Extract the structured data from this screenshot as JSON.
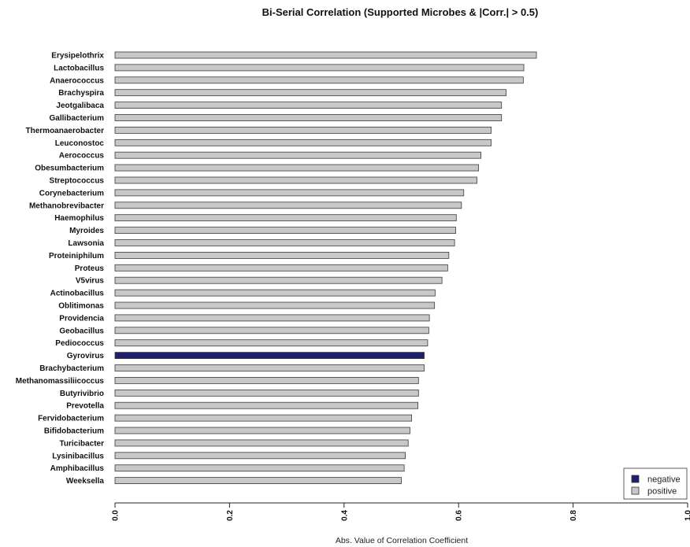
{
  "chart_data": {
    "type": "bar",
    "orientation": "horizontal",
    "title": "Bi-Serial Correlation (Supported Microbes & |Corr.| > 0.5)",
    "xlabel": "Abs. Value of Correlation Coefficient",
    "ylabel": "",
    "xlim": [
      0.0,
      1.0
    ],
    "x_ticks": [
      "0.0",
      "0.2",
      "0.4",
      "0.6",
      "0.8",
      "1.0"
    ],
    "x_tick_values": [
      0.0,
      0.2,
      0.4,
      0.6,
      0.8,
      1.0
    ],
    "legend": {
      "placement": "bottom-right",
      "entries": [
        {
          "label": "negative",
          "color": "#1f1f6b"
        },
        {
          "label": "positive",
          "color": "#c8c8c8"
        }
      ]
    },
    "categories": [
      "Erysipelothrix",
      "Lactobacillus",
      "Anaerococcus",
      "Brachyspira",
      "Jeotgalibaca",
      "Gallibacterium",
      "Thermoanaerobacter",
      "Leuconostoc",
      "Aerococcus",
      "Obesumbacterium",
      "Streptococcus",
      "Corynebacterium",
      "Methanobrevibacter",
      "Haemophilus",
      "Myroides",
      "Lawsonia",
      "Proteiniphilum",
      "Proteus",
      "V5virus",
      "Actinobacillus",
      "Oblitimonas",
      "Providencia",
      "Geobacillus",
      "Pediococcus",
      "Gyrovirus",
      "Brachybacterium",
      "Methanomassiliicoccus",
      "Butyrivibrio",
      "Prevotella",
      "Fervidobacterium",
      "Bifidobacterium",
      "Turicibacter",
      "Lysinibacillus",
      "Amphibacillus",
      "Weeksella"
    ],
    "values": [
      0.736,
      0.714,
      0.713,
      0.683,
      0.675,
      0.675,
      0.657,
      0.657,
      0.639,
      0.635,
      0.632,
      0.609,
      0.605,
      0.596,
      0.595,
      0.593,
      0.583,
      0.581,
      0.571,
      0.559,
      0.558,
      0.549,
      0.548,
      0.546,
      0.54,
      0.54,
      0.53,
      0.53,
      0.529,
      0.518,
      0.515,
      0.512,
      0.507,
      0.505,
      0.5
    ],
    "signs": [
      "positive",
      "positive",
      "positive",
      "positive",
      "positive",
      "positive",
      "positive",
      "positive",
      "positive",
      "positive",
      "positive",
      "positive",
      "positive",
      "positive",
      "positive",
      "positive",
      "positive",
      "positive",
      "positive",
      "positive",
      "positive",
      "positive",
      "positive",
      "positive",
      "negative",
      "positive",
      "positive",
      "positive",
      "positive",
      "positive",
      "positive",
      "positive",
      "positive",
      "positive",
      "positive"
    ],
    "grid": false
  }
}
